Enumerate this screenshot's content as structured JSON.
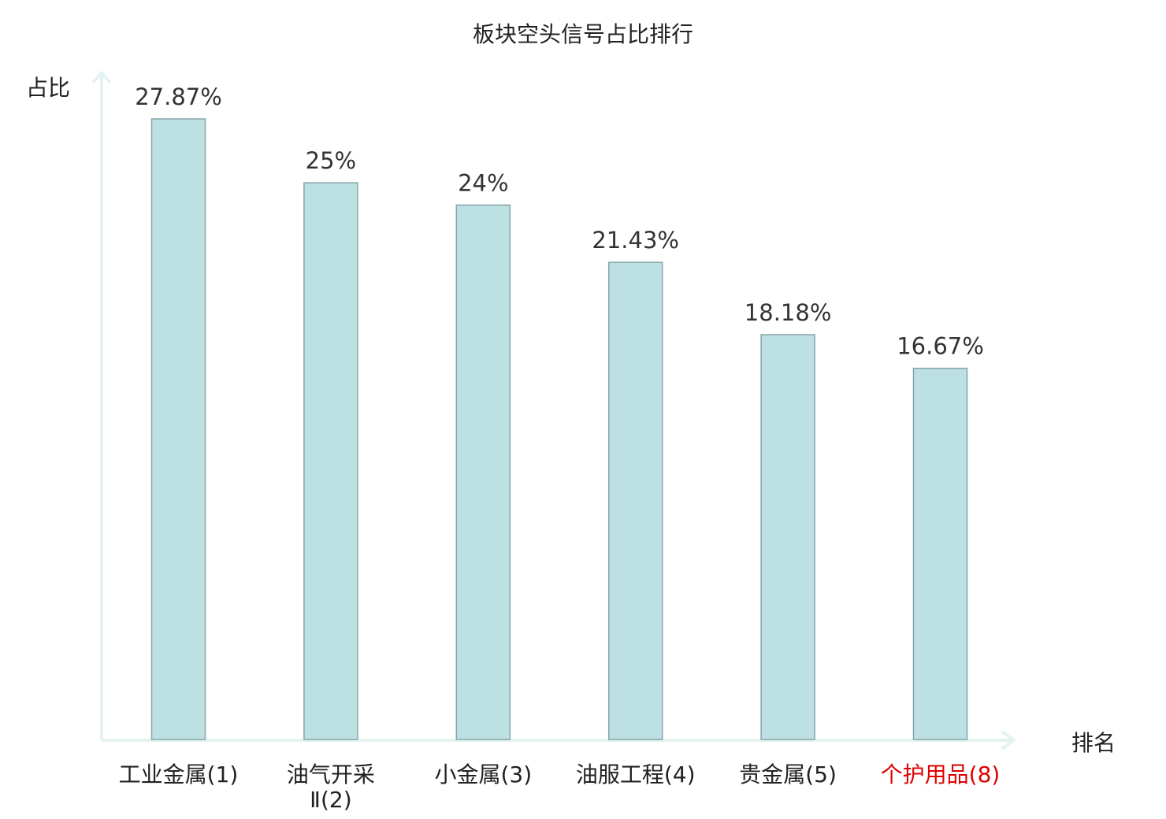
{
  "chart_data": {
    "type": "bar",
    "title": "板块空头信号占比排行",
    "ylabel": "占比",
    "xlabel": "排名",
    "categories": [
      "工业金属(1)",
      "油气开采Ⅱ(2)",
      "小金属(3)",
      "油服工程(4)",
      "贵金属(5)",
      "个护用品(8)"
    ],
    "category_lines": [
      [
        "工业金属(1)"
      ],
      [
        "油气开采",
        "Ⅱ(2)"
      ],
      [
        "小金属(3)"
      ],
      [
        "油服工程(4)"
      ],
      [
        "贵金属(5)"
      ],
      [
        "个护用品(8)"
      ]
    ],
    "values": [
      27.87,
      25,
      24,
      21.43,
      18.18,
      16.67
    ],
    "value_labels": [
      "27.87%",
      "25%",
      "24%",
      "21.43%",
      "18.18%",
      "16.67%"
    ],
    "ylim": [
      0,
      28
    ],
    "grid": false,
    "highlight_index": 5,
    "colors": {
      "bar_fill": "#bde0e3",
      "bar_stroke": "#86a5a8",
      "axis": "#e3f3f1",
      "text": "#222222",
      "highlight_text": "#e00000"
    }
  }
}
